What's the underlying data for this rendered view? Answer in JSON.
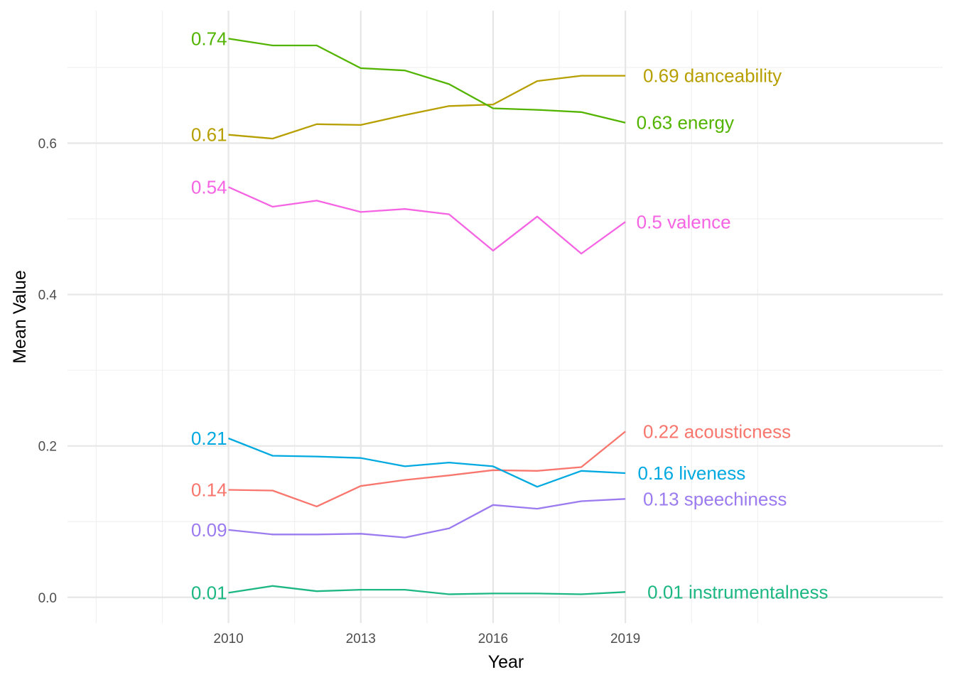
{
  "chart_data": {
    "type": "line",
    "xlabel": "Year",
    "ylabel": "Mean Value",
    "xlim": [
      2006.35,
      2026.2
    ],
    "ylim": [
      -0.034,
      0.775
    ],
    "x_ticks": [
      2010,
      2013,
      2016,
      2019
    ],
    "x_tick_labels": [
      "2010",
      "2013",
      "2016",
      "2019"
    ],
    "x_minor_grid": [
      2007,
      2008.5,
      2011.5,
      2014.5,
      2017.5,
      2020.5,
      2022
    ],
    "y_ticks": [
      0.0,
      0.2,
      0.4,
      0.6
    ],
    "y_tick_labels": [
      "0.0",
      "0.2",
      "0.4",
      "0.6"
    ],
    "y_minor_grid": [
      0.1,
      0.3,
      0.5,
      0.7
    ],
    "grid": true,
    "legend": "none",
    "x": [
      2010,
      2011,
      2012,
      2013,
      2014,
      2015,
      2016,
      2017,
      2018,
      2019
    ],
    "series": [
      {
        "name": "danceability",
        "color": "#B79F00",
        "values": [
          0.611,
          0.606,
          0.625,
          0.624,
          0.637,
          0.649,
          0.651,
          0.682,
          0.689,
          0.689
        ],
        "start_label": "0.61",
        "end_label": "0.69 danceability",
        "end_label_x": 2019.4
      },
      {
        "name": "energy",
        "color": "#53B400",
        "values": [
          0.738,
          0.729,
          0.729,
          0.699,
          0.696,
          0.678,
          0.646,
          0.644,
          0.641,
          0.627
        ],
        "start_label": "0.74",
        "end_label": "0.63 energy",
        "end_label_x": 2019.25
      },
      {
        "name": "valence",
        "color": "#F564E3",
        "values": [
          0.542,
          0.516,
          0.524,
          0.509,
          0.513,
          0.506,
          0.458,
          0.503,
          0.454,
          0.496
        ],
        "start_label": "0.54",
        "end_label": "0.5 valence",
        "end_label_x": 2019.25
      },
      {
        "name": "acousticness",
        "color": "#F8766D",
        "values": [
          0.142,
          0.141,
          0.12,
          0.147,
          0.155,
          0.161,
          0.168,
          0.167,
          0.172,
          0.219
        ],
        "start_label": "0.14",
        "end_label": "0.22 acousticness",
        "end_label_x": 2019.4
      },
      {
        "name": "liveness",
        "color": "#00A9E0",
        "values": [
          0.21,
          0.187,
          0.186,
          0.184,
          0.173,
          0.178,
          0.173,
          0.146,
          0.167,
          0.164
        ],
        "start_label": "0.21",
        "end_label": "0.16 liveness",
        "end_label_x": 2019.28
      },
      {
        "name": "speechiness",
        "color": "#9B7BEF",
        "values": [
          0.089,
          0.083,
          0.083,
          0.084,
          0.079,
          0.091,
          0.122,
          0.117,
          0.127,
          0.13
        ],
        "start_label": "0.09",
        "end_label": "0.13 speechiness",
        "end_label_x": 2019.4
      },
      {
        "name": "instrumentalness",
        "color": "#1DB782",
        "values": [
          0.006,
          0.015,
          0.008,
          0.01,
          0.01,
          0.004,
          0.005,
          0.005,
          0.004,
          0.007
        ],
        "start_label": "0.01",
        "end_label": "0.01 instrumentalness",
        "end_label_x": 2019.5
      }
    ]
  }
}
